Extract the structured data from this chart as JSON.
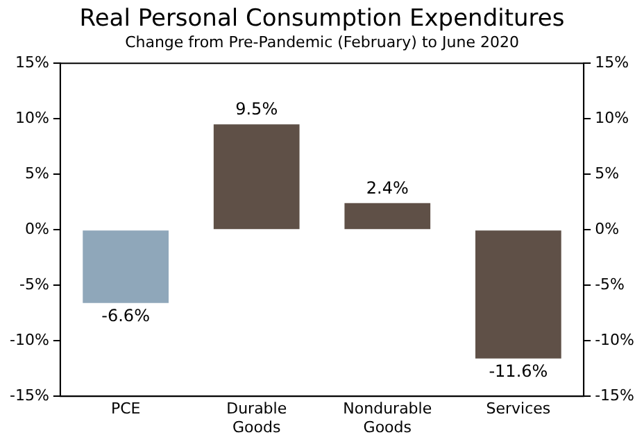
{
  "chart_data": {
    "type": "bar",
    "title": "Real Personal Consumption Expenditures",
    "subtitle": "Change from Pre-Pandemic (February) to June 2020",
    "categories": [
      "PCE",
      "Durable Goods",
      "Nondurable Goods",
      "Services"
    ],
    "values": [
      -6.6,
      9.5,
      2.4,
      -11.6
    ],
    "colors": [
      "#8fa7ba",
      "#5f5047",
      "#5f5047",
      "#5f5047"
    ],
    "value_labels": [
      "-6.6%",
      "9.5%",
      "2.4%",
      "-11.6%"
    ],
    "ylim": [
      -15,
      15
    ],
    "yticks": [
      {
        "value": -15,
        "label": "-15%"
      },
      {
        "value": -10,
        "label": "-10%"
      },
      {
        "value": -5,
        "label": "-5%"
      },
      {
        "value": 0,
        "label": "0%"
      },
      {
        "value": 5,
        "label": "5%"
      },
      {
        "value": 10,
        "label": "10%"
      },
      {
        "value": 15,
        "label": "15%"
      }
    ],
    "y2lim": [
      -15,
      15
    ],
    "y2ticks": [
      {
        "value": -15,
        "label": "-15%"
      },
      {
        "value": -10,
        "label": "-10%"
      },
      {
        "value": -5,
        "label": "-5%"
      },
      {
        "value": 0,
        "label": "0%"
      },
      {
        "value": 5,
        "label": "5%"
      },
      {
        "value": 10,
        "label": "10%"
      },
      {
        "value": 15,
        "label": "15%"
      }
    ],
    "grid": false,
    "legend": false
  }
}
